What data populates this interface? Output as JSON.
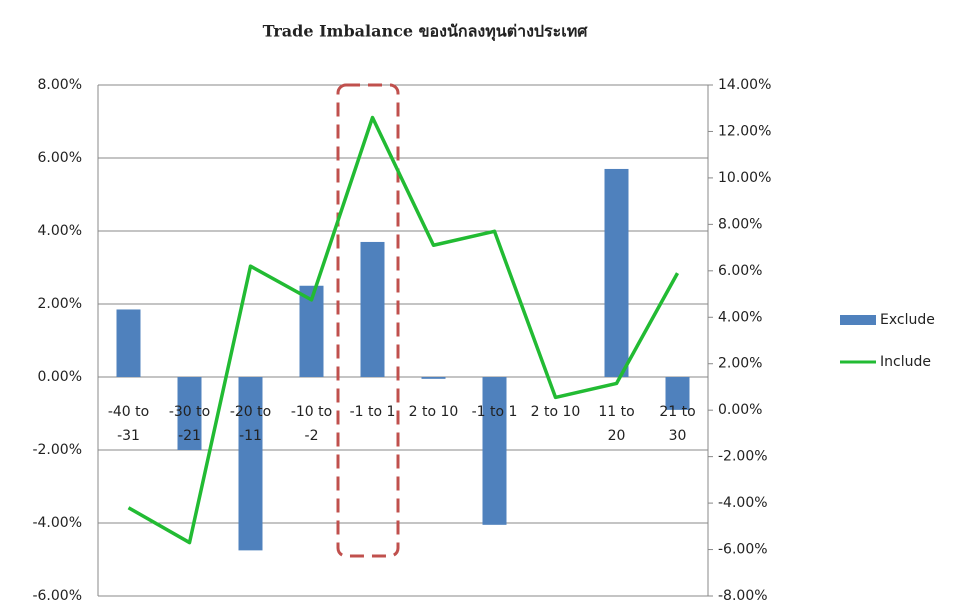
{
  "chart_data": {
    "type": "bar-line",
    "title": "Trade Imbalance ของนักลงทุนต่างประเทศ",
    "categories": [
      "-40 to -31",
      "-30 to -21",
      "-20 to -11",
      "-10 to -2",
      "-1 to 1",
      "2 to 10",
      "-1 to 1",
      "2 to 10",
      "11 to 20",
      "21 to 30"
    ],
    "series": [
      {
        "name": "Exclude",
        "color": "#4f81bd",
        "type": "bar",
        "axis": "y",
        "values": [
          1.85,
          -2.0,
          -4.75,
          2.5,
          3.7,
          -0.05,
          -4.05,
          0,
          5.7,
          -0.9
        ]
      },
      {
        "name": "Include",
        "color": "#22bb33",
        "type": "line",
        "axis": "y2",
        "values": [
          -4.2,
          -5.7,
          6.2,
          4.75,
          12.6,
          7.1,
          7.7,
          0.55,
          1.15,
          5.9
        ]
      }
    ],
    "ylim": [
      -6,
      8
    ],
    "yticks": [
      {
        "value": -6,
        "label": "-6.00%"
      },
      {
        "value": -4,
        "label": "-4.00%"
      },
      {
        "value": -2,
        "label": "-2.00%"
      },
      {
        "value": 0,
        "label": "0.00%"
      },
      {
        "value": 2,
        "label": "2.00%"
      },
      {
        "value": 4,
        "label": "4.00%"
      },
      {
        "value": 6,
        "label": "6.00%"
      },
      {
        "value": 8,
        "label": "8.00%"
      }
    ],
    "y2lim": [
      -8,
      14
    ],
    "y2ticks": [
      {
        "value": -8,
        "label": "-8.00%"
      },
      {
        "value": -6,
        "label": "-6.00%"
      },
      {
        "value": -4,
        "label": "-4.00%"
      },
      {
        "value": -2,
        "label": "-2.00%"
      },
      {
        "value": 0,
        "label": "0.00%"
      },
      {
        "value": 2,
        "label": "2.00%"
      },
      {
        "value": 4,
        "label": "4.00%"
      },
      {
        "value": 6,
        "label": "6.00%"
      },
      {
        "value": 8,
        "label": "8.00%"
      },
      {
        "value": 10,
        "label": "10.00%"
      },
      {
        "value": 12,
        "label": "12.00%"
      },
      {
        "value": 14,
        "label": "14.00%"
      }
    ],
    "grid": true,
    "legend": "right"
  }
}
